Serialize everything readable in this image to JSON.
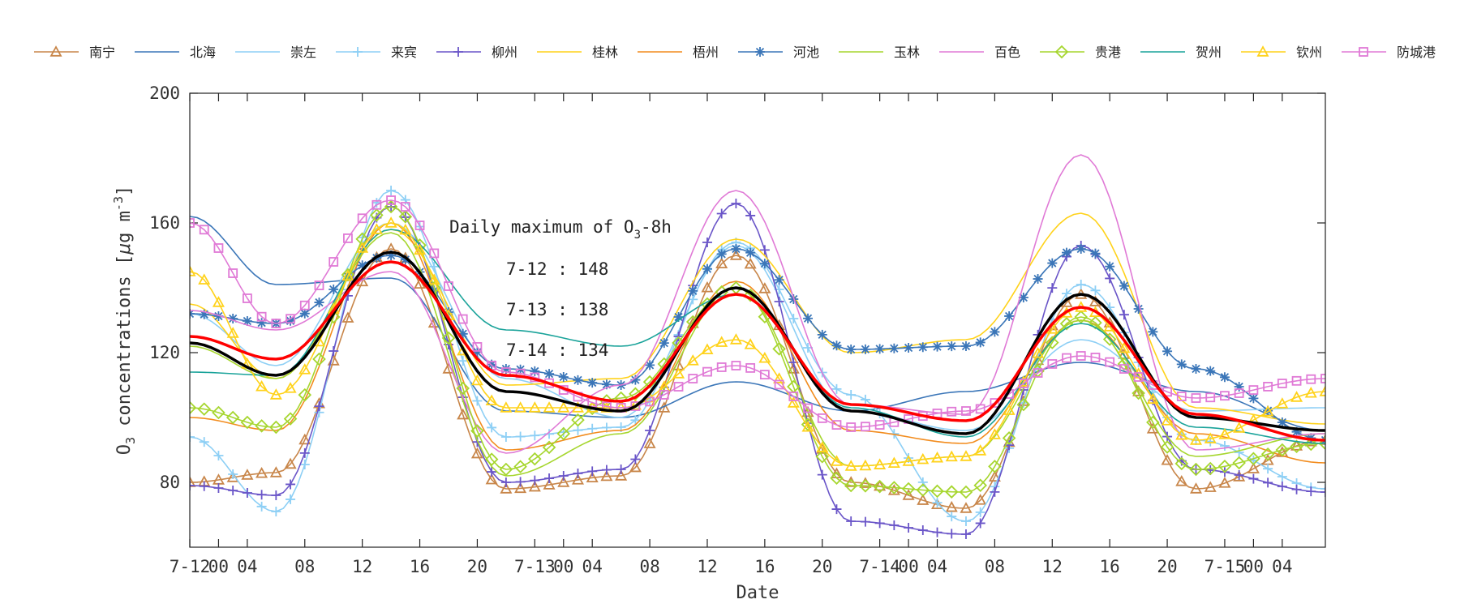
{
  "chart_data": {
    "type": "line",
    "xlabel": "Date",
    "ylabel_prefix": "O",
    "ylabel_sub": "3",
    "ylabel_mid": " concentrations [",
    "ylabel_mu": "μ",
    "ylabel_unit": "g m",
    "ylabel_sup": "-3",
    "ylabel_end": "]",
    "ylim": [
      60,
      200
    ],
    "xlim_hours": [
      0,
      79
    ],
    "y_ticks": [
      80,
      120,
      160,
      200
    ],
    "x_ticks": [
      {
        "h": 0,
        "label": "7-12"
      },
      {
        "h": 2,
        "label": "00"
      },
      {
        "h": 4,
        "label": "04"
      },
      {
        "h": 8,
        "label": "08"
      },
      {
        "h": 12,
        "label": "12"
      },
      {
        "h": 16,
        "label": "16"
      },
      {
        "h": 20,
        "label": "20"
      },
      {
        "h": 24,
        "label": "7-13"
      },
      {
        "h": 26,
        "label": "00"
      },
      {
        "h": 28,
        "label": "04"
      },
      {
        "h": 32,
        "label": "08"
      },
      {
        "h": 36,
        "label": "12"
      },
      {
        "h": 40,
        "label": "16"
      },
      {
        "h": 44,
        "label": "20"
      },
      {
        "h": 48,
        "label": "7-14"
      },
      {
        "h": 50,
        "label": "00"
      },
      {
        "h": 52,
        "label": "04"
      },
      {
        "h": 56,
        "label": "08"
      },
      {
        "h": 60,
        "label": "12"
      },
      {
        "h": 64,
        "label": "16"
      },
      {
        "h": 68,
        "label": "20"
      },
      {
        "h": 72,
        "label": "7-15"
      },
      {
        "h": 74,
        "label": "00"
      },
      {
        "h": 76,
        "label": "04"
      }
    ],
    "annotation": {
      "title_prefix": "Daily maximum of O",
      "title_sub": "3",
      "title_suffix": "-8h",
      "lines": [
        "7-12 : 148",
        "7-13 : 138",
        "7-14 : 134"
      ]
    },
    "anchor_hours": [
      0,
      6,
      14,
      22,
      30,
      38,
      46,
      54,
      62,
      70,
      79
    ],
    "series": [
      {
        "name": "南宁",
        "color": "#c8864a",
        "marker": "triangle",
        "anchors": [
          80,
          83,
          152,
          78,
          82,
          150,
          80,
          72,
          138,
          78,
          93
        ]
      },
      {
        "name": "北海",
        "color": "#3b76b8",
        "marker": "none",
        "anchors": [
          162,
          141,
          143,
          102,
          100,
          111,
          102,
          108,
          117,
          108,
          96
        ]
      },
      {
        "name": "崇左",
        "color": "#8dcff5",
        "marker": "none",
        "anchors": [
          132,
          116,
          160,
          112,
          100,
          153,
          102,
          96,
          124,
          102,
          103
        ]
      },
      {
        "name": "来宾",
        "color": "#8dcff5",
        "marker": "plus",
        "anchors": [
          94,
          71,
          170,
          94,
          97,
          154,
          107,
          68,
          141,
          93,
          78
        ]
      },
      {
        "name": "柳州",
        "color": "#6a55c8",
        "marker": "plus",
        "anchors": [
          79,
          76,
          165,
          80,
          84,
          166,
          68,
          64,
          153,
          84,
          77
        ]
      },
      {
        "name": "桂林",
        "color": "#ffd21a",
        "marker": "none",
        "anchors": [
          135,
          112,
          158,
          110,
          112,
          155,
          120,
          124,
          163,
          103,
          98
        ]
      },
      {
        "name": "梧州",
        "color": "#f28c1e",
        "marker": "none",
        "anchors": [
          100,
          96,
          160,
          90,
          96,
          142,
          96,
          92,
          130,
          95,
          86
        ]
      },
      {
        "name": "河池",
        "color": "#3b76b8",
        "marker": "star",
        "anchors": [
          132,
          129,
          150,
          115,
          110,
          152,
          121,
          122,
          152,
          115,
          93
        ]
      },
      {
        "name": "玉林",
        "color": "#a6d62e",
        "marker": "none",
        "anchors": [
          122,
          112,
          157,
          82,
          95,
          140,
          85,
          88,
          130,
          88,
          95
        ]
      },
      {
        "name": "百色",
        "color": "#e07ad6",
        "marker": "none",
        "anchors": [
          133,
          127,
          145,
          89,
          110,
          170,
          104,
          101,
          181,
          90,
          95
        ]
      },
      {
        "name": "贵港",
        "color": "#a6d62e",
        "marker": "diamond",
        "anchors": [
          103,
          97,
          165,
          84,
          106,
          140,
          79,
          77,
          131,
          84,
          92
        ]
      },
      {
        "name": "贺州",
        "color": "#1aa39a",
        "marker": "none",
        "anchors": [
          114,
          113,
          158,
          127,
          122,
          138,
          103,
          94,
          129,
          97,
          92
        ]
      },
      {
        "name": "钦州",
        "color": "#ffd21a",
        "marker": "triangle",
        "anchors": [
          145,
          107,
          160,
          103,
          103,
          124,
          85,
          88,
          134,
          93,
          108
        ]
      },
      {
        "name": "防城港",
        "color": "#e07ad6",
        "marker": "square",
        "anchors": [
          160,
          129,
          167,
          114,
          103,
          116,
          97,
          102,
          119,
          106,
          112
        ]
      },
      {
        "name": "",
        "color": "#000000",
        "marker": "none",
        "width": 3.5,
        "anchors": [
          123,
          113,
          151,
          108,
          102,
          140,
          102,
          95,
          138,
          100,
          96
        ]
      },
      {
        "name": "",
        "color": "#ff0000",
        "marker": "none",
        "width": 3.5,
        "anchors": [
          125,
          118,
          148,
          113,
          105,
          138,
          104,
          99,
          134,
          101,
          93
        ]
      }
    ]
  }
}
